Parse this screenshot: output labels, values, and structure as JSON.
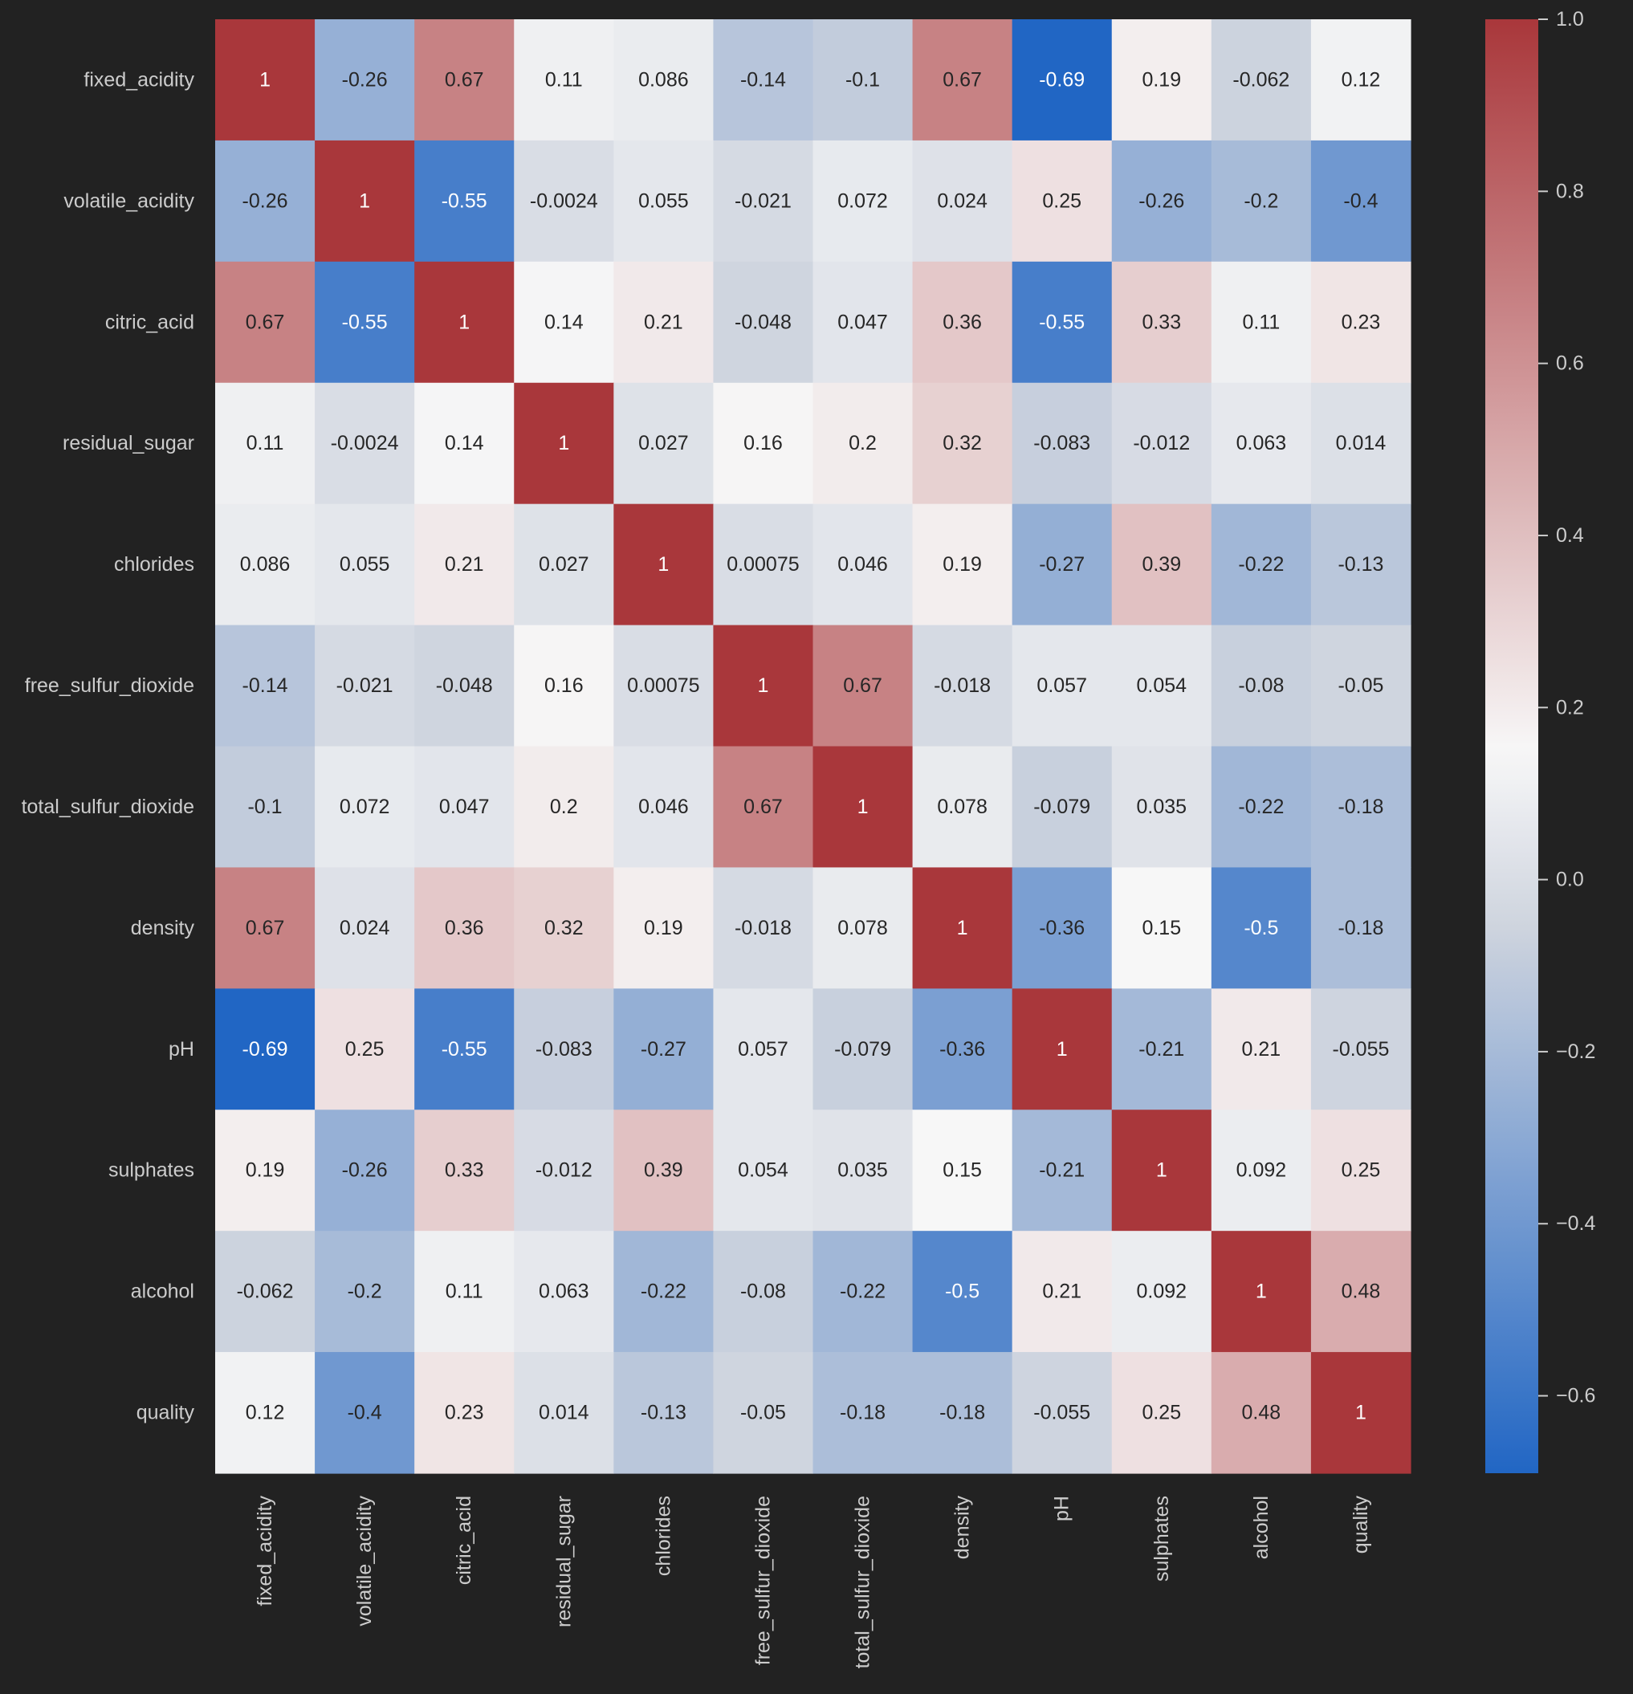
{
  "chart_data": {
    "type": "heatmap",
    "title": "",
    "xlabel": "",
    "ylabel": "",
    "x_labels": [
      "fixed_acidity",
      "volatile_acidity",
      "citric_acid",
      "residual_sugar",
      "chlorides",
      "free_sulfur_dioxide",
      "total_sulfur_dioxide",
      "density",
      "pH",
      "sulphates",
      "alcohol",
      "quality"
    ],
    "y_labels": [
      "fixed_acidity",
      "volatile_acidity",
      "citric_acid",
      "residual_sugar",
      "chlorides",
      "free_sulfur_dioxide",
      "total_sulfur_dioxide",
      "density",
      "pH",
      "sulphates",
      "alcohol",
      "quality"
    ],
    "values": [
      [
        1,
        -0.26,
        0.67,
        0.11,
        0.086,
        -0.14,
        -0.1,
        0.67,
        -0.69,
        0.19,
        -0.062,
        0.12
      ],
      [
        -0.26,
        1,
        -0.55,
        -0.0024,
        0.055,
        -0.021,
        0.072,
        0.024,
        0.25,
        -0.26,
        -0.2,
        -0.4
      ],
      [
        0.67,
        -0.55,
        1,
        0.14,
        0.21,
        -0.048,
        0.047,
        0.36,
        -0.55,
        0.33,
        0.11,
        0.23
      ],
      [
        0.11,
        -0.0024,
        0.14,
        1,
        0.027,
        0.16,
        0.2,
        0.32,
        -0.083,
        -0.012,
        0.063,
        0.014
      ],
      [
        0.086,
        0.055,
        0.21,
        0.027,
        1,
        0.00075,
        0.046,
        0.19,
        -0.27,
        0.39,
        -0.22,
        -0.13
      ],
      [
        -0.14,
        -0.021,
        -0.048,
        0.16,
        0.00075,
        1,
        0.67,
        -0.018,
        0.057,
        0.054,
        -0.08,
        -0.05
      ],
      [
        -0.1,
        0.072,
        0.047,
        0.2,
        0.046,
        0.67,
        1,
        0.078,
        -0.079,
        0.035,
        -0.22,
        -0.18
      ],
      [
        0.67,
        0.024,
        0.36,
        0.32,
        0.19,
        -0.018,
        0.078,
        1,
        -0.36,
        0.15,
        -0.5,
        -0.18
      ],
      [
        -0.69,
        0.25,
        -0.55,
        -0.083,
        -0.27,
        0.057,
        -0.079,
        -0.36,
        1,
        -0.21,
        0.21,
        -0.055
      ],
      [
        0.19,
        -0.26,
        0.33,
        -0.012,
        0.39,
        0.054,
        0.035,
        0.15,
        -0.21,
        1,
        0.092,
        0.25
      ],
      [
        -0.062,
        -0.2,
        0.11,
        0.063,
        -0.22,
        -0.08,
        -0.22,
        -0.5,
        0.21,
        0.092,
        1,
        0.48
      ],
      [
        0.12,
        -0.4,
        0.23,
        0.014,
        -0.13,
        -0.05,
        -0.18,
        -0.18,
        -0.055,
        0.25,
        0.48,
        1
      ]
    ],
    "colorbar": {
      "min": -0.69,
      "max": 1.0,
      "ticks": [
        "1.0",
        "0.8",
        "0.6",
        "0.4",
        "0.2",
        "0.0",
        "−0.2",
        "−0.4",
        "−0.6"
      ],
      "tick_values": [
        1.0,
        0.8,
        0.6,
        0.4,
        0.2,
        0.0,
        -0.2,
        -0.4,
        -0.6
      ]
    },
    "colormap": {
      "name": "vlag-like diverging",
      "center": 0.15,
      "low_color": "#2166c4",
      "mid_color": "#f7f7f7",
      "high_color": "#a9373b"
    },
    "background_color": "#222222",
    "label_color": "#cccccc"
  }
}
